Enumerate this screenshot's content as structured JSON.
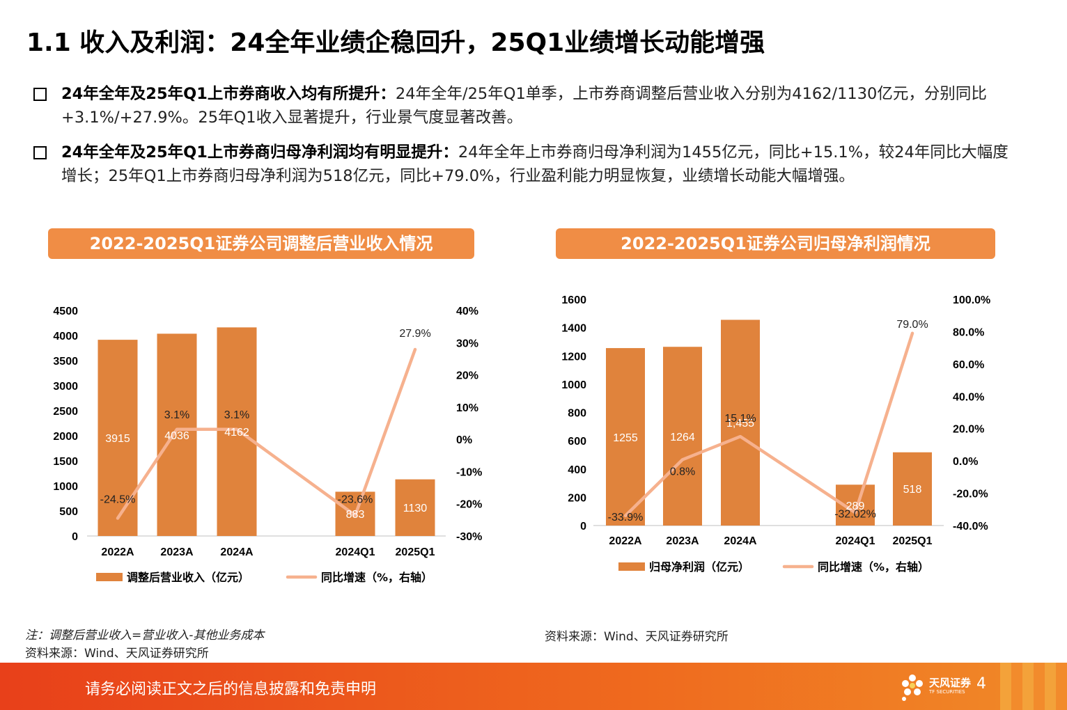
{
  "page": {
    "title": "1.1 收入及利润：24全年业绩企稳回升，25Q1业绩增长动能增强",
    "bullets": [
      {
        "bold": "24年全年及25年Q1上市券商收入均有所提升：",
        "text": "24年全年/25年Q1单季，上市券商调整后营业收入分别为4162/1130亿元，分别同比+3.1%/+27.9%。25年Q1收入显著提升，行业景气度显著改善。"
      },
      {
        "bold": "24年全年及25年Q1上市券商归母净利润均有明显提升：",
        "text": "24年全年上市券商归母净利润为1455亿元，同比+15.1%，较24年同比大幅度增长；25年Q1上市券商归母净利润为518亿元，同比+79.0%，行业盈利能力明显恢复，业绩增长动能大幅增强。"
      }
    ],
    "note_left": "注：调整后营业收入=营业收入-其他业务成本",
    "source_left": "资料来源：Wind、天风证券研究所",
    "source_right": "资料来源：Wind、天风证券研究所",
    "footer": {
      "disclaimer": "请务必阅读正文之后的信息披露和免责申明",
      "logo_text": "天风证券",
      "logo_sub": "TF SECURITIES",
      "page_number": "4"
    },
    "colors": {
      "bar": "#e0833c",
      "line": "#f6b18e",
      "header": "#f08d45",
      "footer": "#ec5a1c"
    }
  },
  "chart_data": [
    {
      "type": "bar",
      "title": "2022-2025Q1证券公司调整后营业收入情况",
      "categories": [
        "2022A",
        "2023A",
        "2024A",
        "2024Q1",
        "2025Q1"
      ],
      "series": [
        {
          "name": "调整后营业收入（亿元）",
          "type": "bar",
          "axis": "left",
          "values": [
            3915,
            4036,
            4162,
            883,
            1130
          ],
          "labels": [
            "3915",
            "4036",
            "4162",
            "883",
            "1130"
          ]
        },
        {
          "name": "同比增速（%，右轴）",
          "type": "line",
          "axis": "right",
          "values": [
            -24.5,
            3.1,
            3.1,
            -23.6,
            27.9
          ],
          "labels": [
            "-24.5%",
            "3.1%",
            "3.1%",
            "-23.6%",
            "27.9%"
          ]
        }
      ],
      "ylim": [
        0,
        4500
      ],
      "yticks": [
        0,
        500,
        1000,
        1500,
        2000,
        2500,
        3000,
        3500,
        4000,
        4500
      ],
      "ytick_labels": [
        "0",
        "500",
        "1000",
        "1500",
        "2000",
        "2500",
        "3000",
        "3500",
        "4000",
        "4500"
      ],
      "y2lim": [
        -30,
        40
      ],
      "y2ticks": [
        -30,
        -20,
        -10,
        0,
        10,
        20,
        30,
        40
      ],
      "y2tick_labels": [
        "-30%",
        "-20%",
        "-10%",
        "0%",
        "10%",
        "20%",
        "30%",
        "40%"
      ],
      "legend": "bottom",
      "grid": false
    },
    {
      "type": "bar",
      "title": "2022-2025Q1证券公司归母净利润情况",
      "categories": [
        "2022A",
        "2023A",
        "2024A",
        "2024Q1",
        "2025Q1"
      ],
      "series": [
        {
          "name": "归母净利润（亿元）",
          "type": "bar",
          "axis": "left",
          "values": [
            1255,
            1264,
            1455,
            289,
            518
          ],
          "labels": [
            "1255",
            "1264",
            "1,455",
            "289",
            "518"
          ]
        },
        {
          "name": "同比增速（%，右轴）",
          "type": "line",
          "axis": "right",
          "values": [
            -33.9,
            0.8,
            15.1,
            -32.02,
            79.0
          ],
          "labels": [
            "-33.9%",
            "0.8%",
            "15.1%",
            "-32.02%",
            "79.0%"
          ]
        }
      ],
      "ylim": [
        0,
        1600
      ],
      "yticks": [
        0,
        200,
        400,
        600,
        800,
        1000,
        1200,
        1400,
        1600
      ],
      "ytick_labels": [
        "0",
        "200",
        "400",
        "600",
        "800",
        "1000",
        "1200",
        "1400",
        "1600"
      ],
      "y2lim": [
        -40,
        100
      ],
      "y2ticks": [
        -40,
        -20,
        0,
        20,
        40,
        60,
        80,
        100
      ],
      "y2tick_labels": [
        "-40.0%",
        "-20.0%",
        "0.0%",
        "20.0%",
        "40.0%",
        "60.0%",
        "80.0%",
        "100.0%"
      ],
      "legend": "bottom",
      "grid": false
    }
  ]
}
